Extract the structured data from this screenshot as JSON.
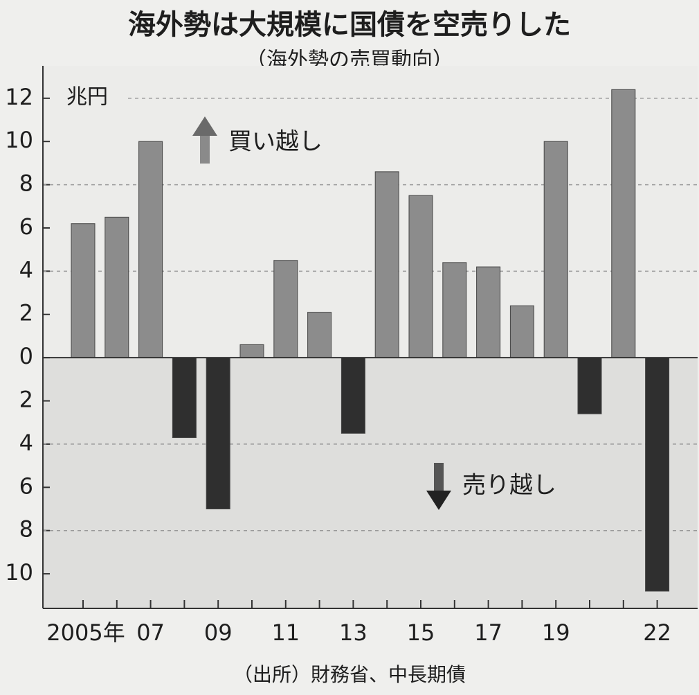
{
  "chart_data": {
    "type": "bar",
    "title": "海外勢は大規模に国債を空売りした",
    "subtitle": "（海外勢の売買動向）",
    "unit_label": "兆円",
    "annotations": [
      "買い越し",
      "売り越し"
    ],
    "source": "（出所）財務省、中長期債",
    "categories": [
      "2005年",
      null,
      "07",
      null,
      "09",
      null,
      "11",
      null,
      "13",
      null,
      "15",
      null,
      "17",
      null,
      "19",
      null,
      null,
      "22"
    ],
    "values": [
      6.2,
      6.5,
      10.0,
      -3.7,
      -7.0,
      0.6,
      4.5,
      2.1,
      -3.5,
      8.6,
      7.5,
      4.4,
      4.2,
      2.4,
      10.0,
      -2.6,
      12.4,
      -10.8
    ],
    "color_positive": "#8c8c8c",
    "color_negative": "#2f2f2f",
    "ylim": [
      -11.6,
      13.5
    ],
    "yticks": [
      {
        "value": -10,
        "label": "10"
      },
      {
        "value": -8,
        "label": "8"
      },
      {
        "value": -6,
        "label": "6"
      },
      {
        "value": -4,
        "label": "4"
      },
      {
        "value": -2,
        "label": "2"
      },
      0,
      2,
      4,
      6,
      8,
      10,
      12
    ],
    "grid": true
  }
}
